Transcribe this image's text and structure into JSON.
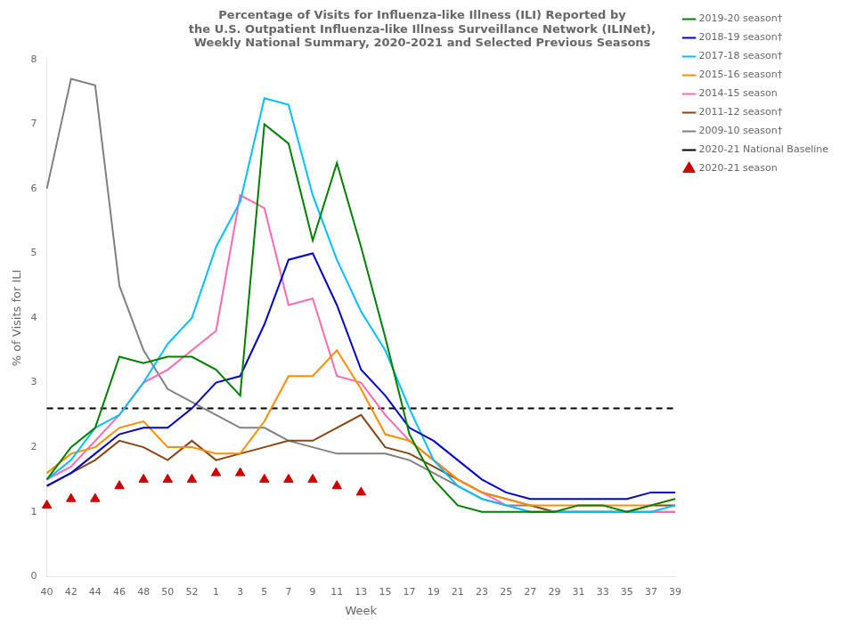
{
  "chart_data": {
    "type": "line",
    "title": "Percentage of Visits for Influenza-like Illness (ILI) Reported by\nthe U.S. Outpatient Influenza-like Illness Surveillance Network (ILINet),\nWeekly National Summary, 2020-2021 and Selected Previous Seasons",
    "x_label": "Week",
    "y_label": "% of Visits for ILI",
    "categories": [
      "40",
      "42",
      "44",
      "46",
      "48",
      "50",
      "52",
      "1",
      "3",
      "5",
      "7",
      "9",
      "11",
      "13",
      "15",
      "17",
      "19",
      "21",
      "23",
      "25",
      "27",
      "29",
      "31",
      "33",
      "35",
      "37",
      "39"
    ],
    "ylim": [
      0,
      8
    ],
    "yticks": [
      0,
      1,
      2,
      3,
      4,
      5,
      6,
      7,
      8
    ],
    "grid": false,
    "legend": "upper right",
    "series": [
      {
        "name": "2019-20 season†",
        "color": "#008000",
        "line_style": "solid",
        "values": [
          1.5,
          2.0,
          2.3,
          3.4,
          3.3,
          3.4,
          3.4,
          3.2,
          2.8,
          7.0,
          6.7,
          5.2,
          6.4,
          5.1,
          3.7,
          2.2,
          1.5,
          1.1,
          1.0,
          1.0,
          1.0,
          1.0,
          1.1,
          1.1,
          1.0,
          1.1,
          1.2
        ]
      },
      {
        "name": "2018-19 season†",
        "color": "#0000CD",
        "line_style": "solid",
        "values": [
          1.4,
          1.6,
          1.9,
          2.2,
          2.3,
          2.3,
          2.6,
          3.0,
          3.1,
          3.9,
          4.9,
          5.0,
          4.2,
          3.2,
          2.8,
          2.3,
          2.1,
          1.8,
          1.5,
          1.3,
          1.2,
          1.2,
          1.2,
          1.2,
          1.2,
          1.3,
          1.3
        ]
      },
      {
        "name": "2017-18 season†",
        "color": "#00BFFF",
        "line_style": "solid",
        "values": [
          1.5,
          1.8,
          2.3,
          2.5,
          3.0,
          3.6,
          4.0,
          5.1,
          5.8,
          7.4,
          7.3,
          5.9,
          4.9,
          4.1,
          3.5,
          2.6,
          1.8,
          1.4,
          1.2,
          1.1,
          1.0,
          1.0,
          1.0,
          1.0,
          1.0,
          1.0,
          1.1
        ]
      },
      {
        "name": "2015-16 season†",
        "color": "#FF8C00",
        "line_style": "solid",
        "values": [
          1.6,
          1.9,
          2.0,
          2.3,
          2.4,
          2.0,
          2.0,
          1.9,
          1.9,
          2.4,
          3.1,
          3.1,
          3.5,
          2.9,
          2.2,
          2.1,
          1.8,
          1.5,
          1.3,
          1.2,
          1.1,
          1.1,
          1.1,
          1.1,
          1.1,
          1.1,
          1.2
        ]
      },
      {
        "name": "2014-15 season",
        "color": "#FF69B4",
        "line_style": "solid",
        "values": [
          1.5,
          1.7,
          2.1,
          2.5,
          3.0,
          3.2,
          3.5,
          3.8,
          5.9,
          5.7,
          4.2,
          4.3,
          3.1,
          3.0,
          2.5,
          2.1,
          1.8,
          1.5,
          1.3,
          1.1,
          1.0,
          1.0,
          1.0,
          1.0,
          1.0,
          1.0,
          1.0
        ]
      },
      {
        "name": "2011-12 season†",
        "color": "#8B4513",
        "line_style": "solid",
        "values": [
          1.4,
          1.6,
          1.8,
          2.1,
          2.0,
          1.8,
          2.1,
          1.8,
          1.9,
          2.0,
          2.1,
          2.1,
          2.3,
          2.5,
          2.0,
          1.9,
          1.7,
          1.5,
          1.3,
          1.2,
          1.1,
          1.0,
          1.0,
          1.0,
          1.0,
          1.1,
          1.1
        ]
      },
      {
        "name": "2009-10 season†",
        "color": "#808080",
        "line_style": "solid",
        "values": [
          6.0,
          7.7,
          7.6,
          4.5,
          3.5,
          2.9,
          2.7,
          2.5,
          2.3,
          2.3,
          2.1,
          2.0,
          1.9,
          1.9,
          1.9,
          1.8,
          1.6,
          1.4,
          1.2,
          1.1,
          1.1,
          1.0,
          1.0,
          1.0,
          1.0,
          1.0,
          1.0
        ]
      },
      {
        "name": "2020-21 season",
        "color": "#CC0000",
        "line_style": "none",
        "marker": "triangle",
        "values": [
          1.1,
          1.2,
          1.2,
          1.4,
          1.5,
          1.5,
          1.5,
          1.6,
          1.6,
          1.5,
          1.5,
          1.5,
          1.4,
          1.3,
          null,
          null,
          null,
          null,
          null,
          null,
          null,
          null,
          null,
          null,
          null,
          null,
          null
        ]
      }
    ],
    "hlines": [
      {
        "name": "2020-21 National Baseline",
        "value": 2.6,
        "color": "#000000",
        "line_style": "dashed"
      }
    ]
  }
}
